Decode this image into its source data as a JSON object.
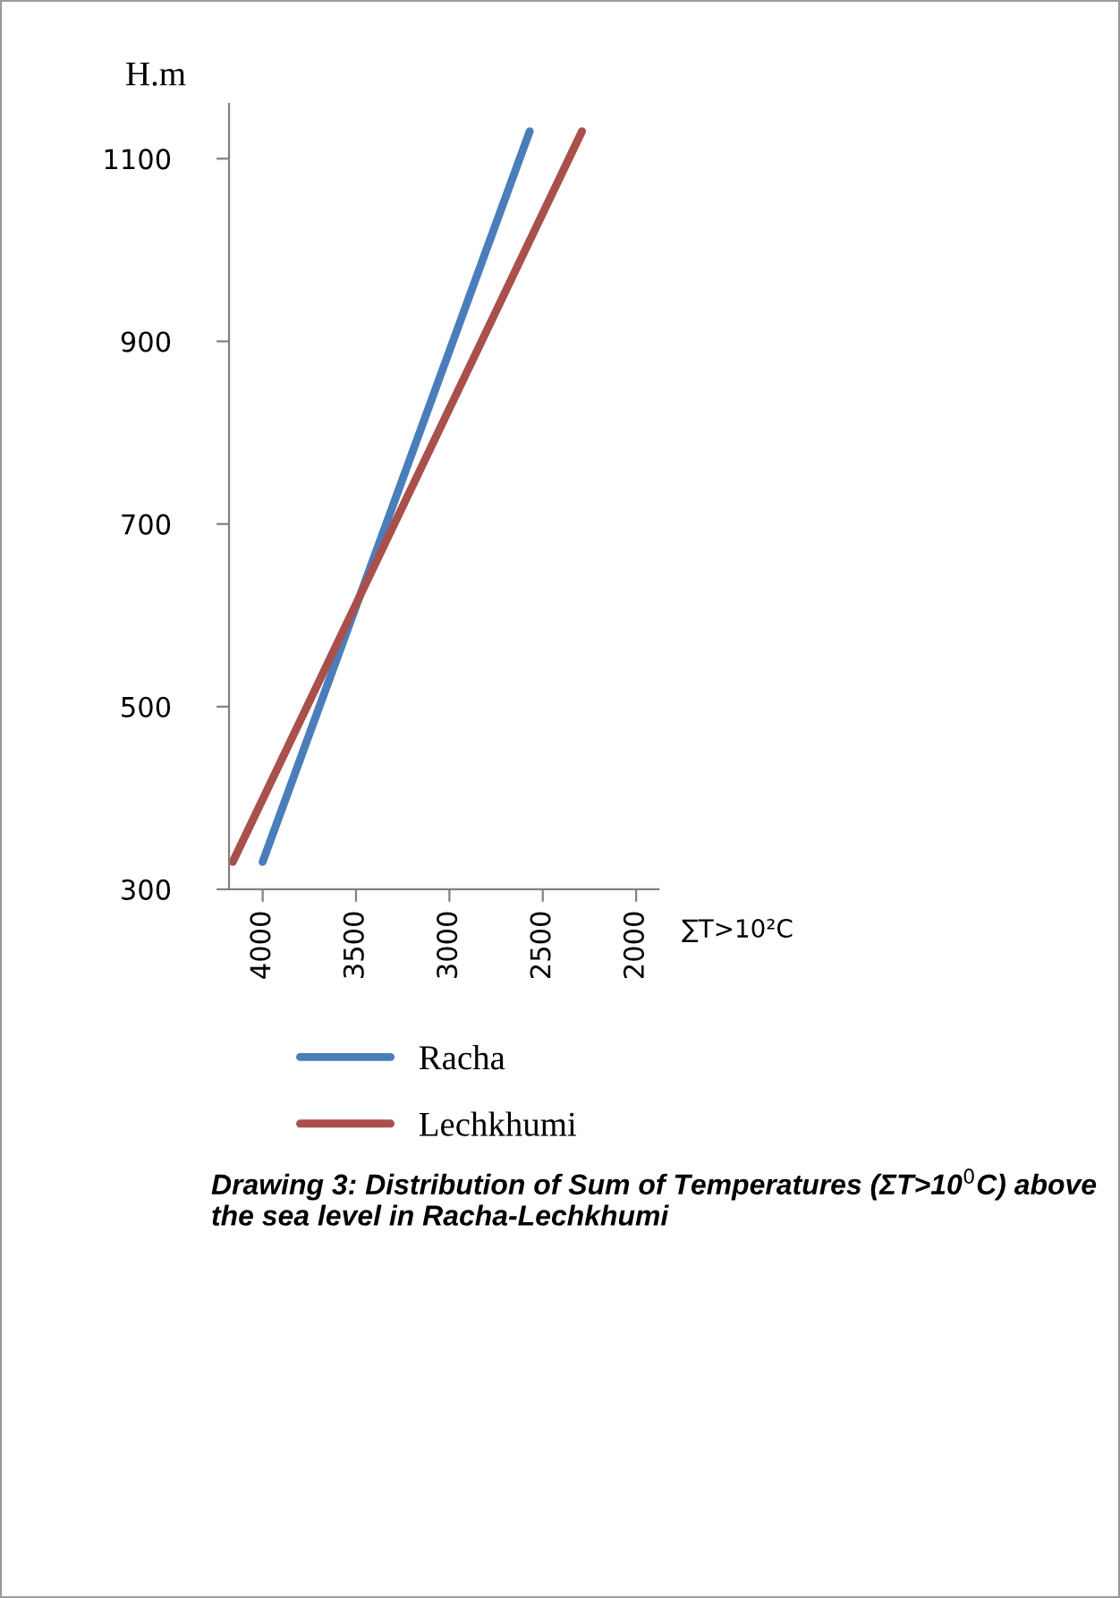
{
  "chart_data": {
    "type": "line",
    "ylabel": "H.m",
    "xlabel": "∑T>10²C",
    "annotations": [
      "Drawing 3: Distribution of Sum of Temperatures (ΣT>10$^{0}$C) above the sea level in Racha-Lechkhumi"
    ],
    "series": [
      {
        "name": "Racha",
        "color": "#4a7ebb",
        "x": [
          4000,
          2570
        ],
        "values": [
          330,
          1130
        ]
      },
      {
        "name": "Lechkhumi",
        "color": "#a9504c",
        "x": [
          4160,
          2290
        ],
        "values": [
          330,
          1130
        ]
      }
    ],
    "xlim": [
      4180,
      1880
    ],
    "xticks": [
      4000,
      3500,
      3000,
      2500,
      2000
    ],
    "ylim": [
      300,
      1160
    ],
    "yticks": [
      300,
      500,
      700,
      900,
      1100
    ],
    "grid": false,
    "legend": "bottom",
    "marker": "none",
    "line_style": "solid"
  }
}
